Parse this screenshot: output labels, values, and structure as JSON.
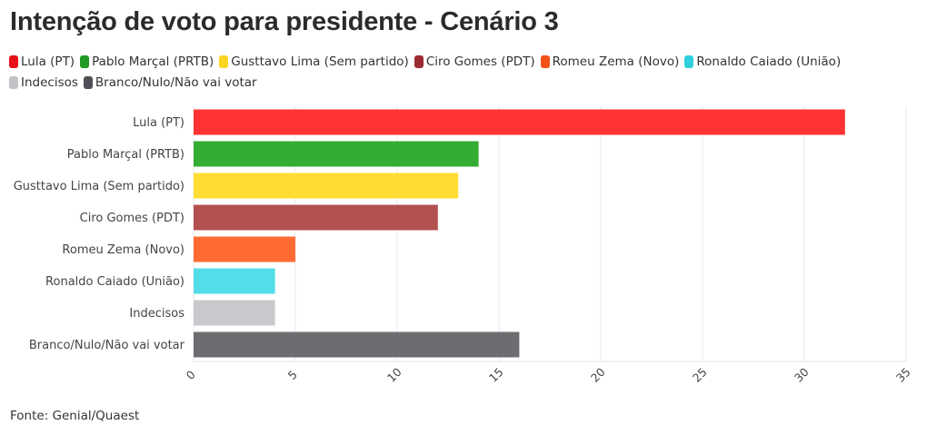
{
  "chart_data": {
    "type": "bar",
    "orientation": "horizontal",
    "title": "Intenção de voto para presidente - Cenário 3",
    "categories": [
      "Lula (PT)",
      "Pablo Marçal (PRTB)",
      "Gusttavo Lima (Sem partido)",
      "Ciro Gomes (PDT)",
      "Romeu Zema (Novo)",
      "Ronaldo Caiado (União)",
      "Indecisos",
      "Branco/Nulo/Não vai votar"
    ],
    "values": [
      32,
      14,
      13,
      12,
      5,
      4,
      4,
      16
    ],
    "colors": [
      "#ff3333",
      "#33ad33",
      "#ffdd33",
      "#b35050",
      "#ff6a33",
      "#52dde8",
      "#cac8cc",
      "#6e6c70"
    ],
    "legend_colors": [
      "#e8101a",
      "#1f9a22",
      "#fcd521",
      "#9b2b31",
      "#f05218",
      "#2fd0dc",
      "#c2c2c6",
      "#4f4f55"
    ],
    "xlabel": "",
    "ylabel": "",
    "xlim": [
      0,
      35
    ],
    "xticks": [
      0,
      5,
      10,
      15,
      20,
      25,
      30,
      35
    ],
    "grid": true,
    "legend_position": "top"
  },
  "source": "Fonte: Genial/Quaest"
}
